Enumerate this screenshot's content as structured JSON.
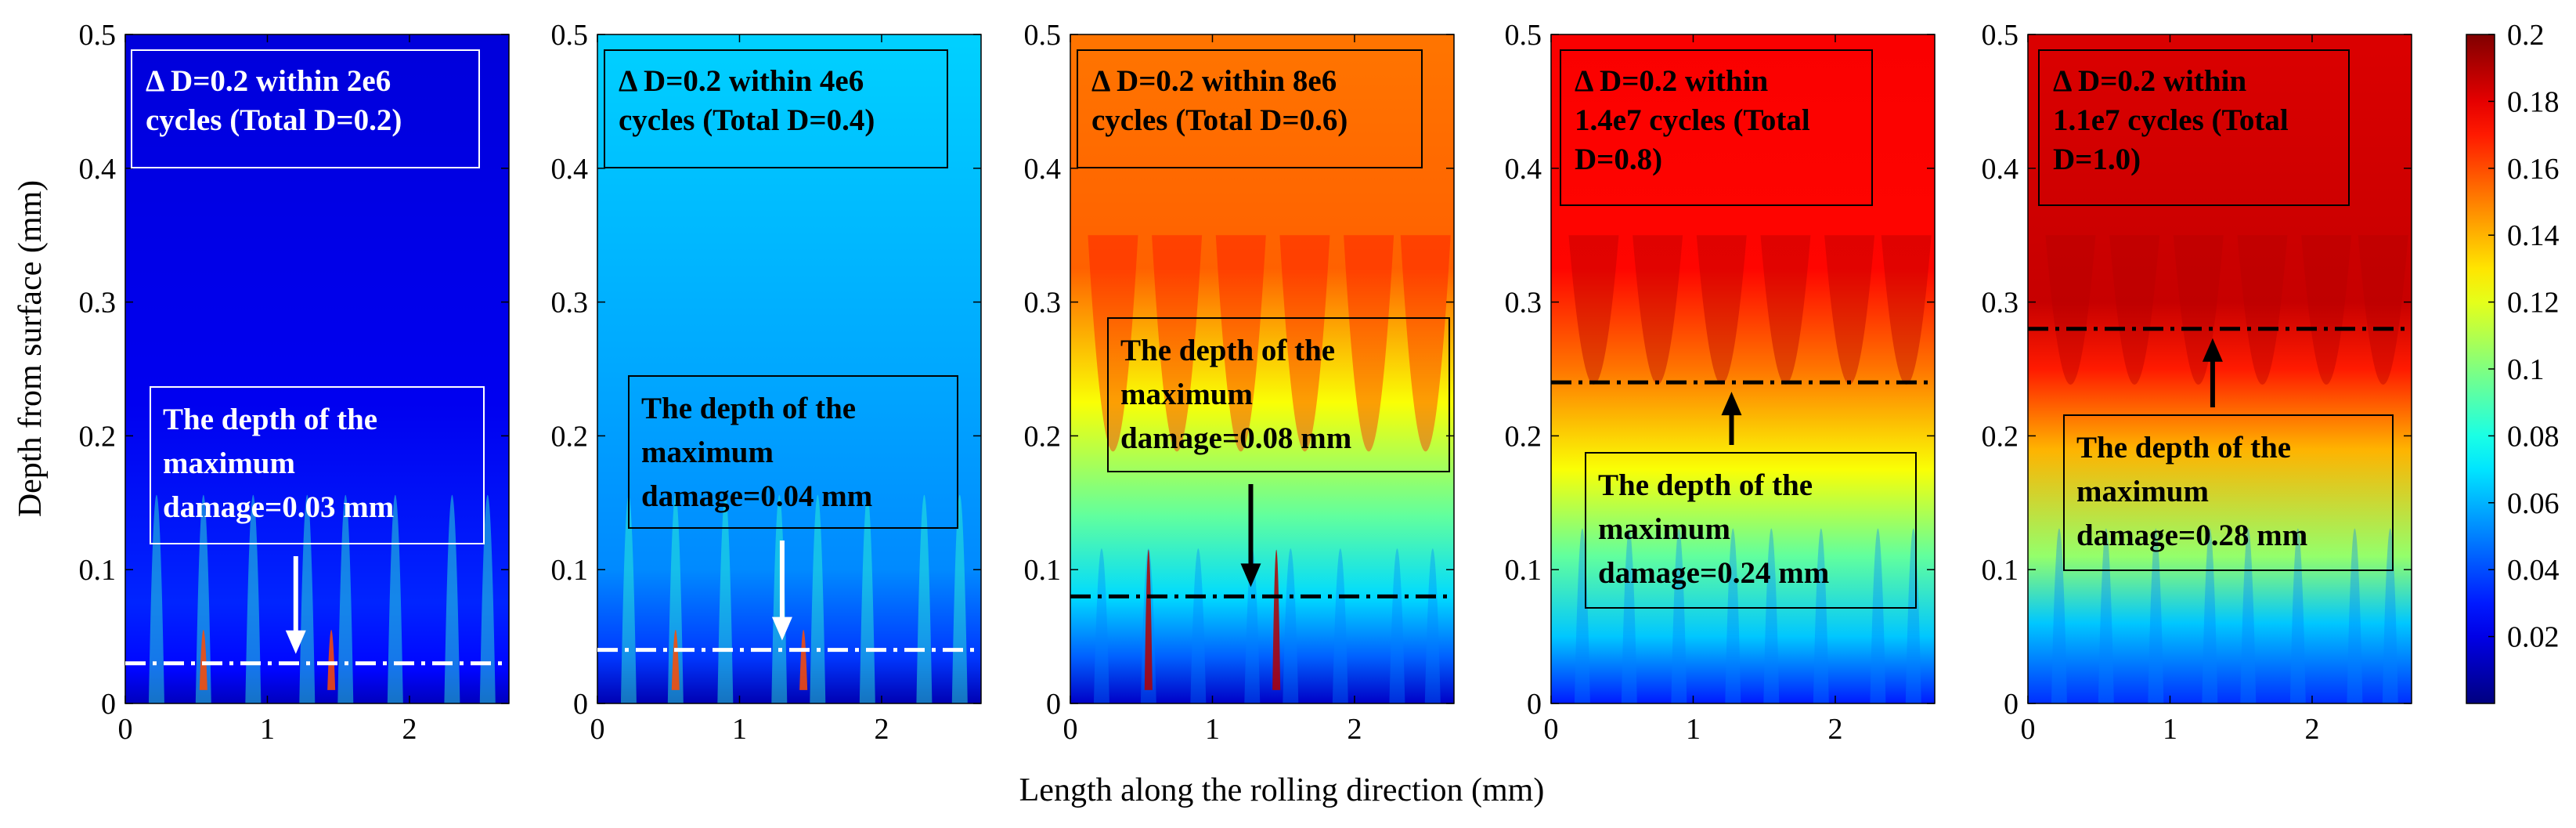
{
  "figure": {
    "ylabel": "Depth from surface (mm)",
    "xlabel": "Length along the rolling direction (mm)"
  },
  "colors": {
    "axis": "#000000",
    "white_label": "#ffffff",
    "colormap_jet": [
      "#00008f",
      "#0000ff",
      "#0080ff",
      "#00ffff",
      "#80ff80",
      "#ffff00",
      "#ff8000",
      "#ff0000",
      "#800000"
    ]
  },
  "chart_data": {
    "type": "heatmap",
    "x_range": [
      0,
      2.7
    ],
    "y_range": [
      0,
      0.5
    ],
    "x_ticks": [
      0,
      1,
      2
    ],
    "y_ticks": [
      0,
      0.1,
      0.2,
      0.3,
      0.4,
      0.5
    ],
    "panels": [
      {
        "title_lines": [
          "Δ D=0.2 within 2e6",
          "cycles (Total D=0.2)"
        ],
        "cycles": 2000000,
        "delta_D": 0.2,
        "total_D": 0.2,
        "max_damage_depth_mm": 0.03,
        "annotation_lines": [
          "The depth of the",
          "maximum",
          "damage=0.03 mm"
        ],
        "text_color": "white",
        "line_color": "white",
        "arrow_dir": "down",
        "arrow_x": 1.2
      },
      {
        "title_lines": [
          "Δ D=0.2 within 4e6",
          "cycles (Total D=0.4)"
        ],
        "cycles": 4000000,
        "delta_D": 0.2,
        "total_D": 0.4,
        "max_damage_depth_mm": 0.04,
        "annotation_lines": [
          "The depth of the",
          "maximum",
          "damage=0.04 mm"
        ],
        "text_color": "black",
        "line_color": "white",
        "arrow_dir": "down",
        "arrow_x": 1.3
      },
      {
        "title_lines": [
          "Δ D=0.2 within 8e6",
          "cycles (Total D=0.6)"
        ],
        "cycles": 8000000,
        "delta_D": 0.2,
        "total_D": 0.6,
        "max_damage_depth_mm": 0.08,
        "annotation_lines": [
          "The depth of the",
          "maximum",
          "damage=0.08 mm"
        ],
        "text_color": "black",
        "line_color": "black",
        "arrow_dir": "down",
        "arrow_x": 1.27
      },
      {
        "title_lines": [
          "Δ D=0.2 within",
          "1.4e7 cycles (Total",
          "D=0.8)"
        ],
        "cycles": 14000000,
        "delta_D": 0.2,
        "total_D": 0.8,
        "max_damage_depth_mm": 0.24,
        "annotation_lines": [
          "The depth of the",
          "maximum",
          "damage=0.24 mm"
        ],
        "text_color": "black",
        "line_color": "black",
        "arrow_dir": "up",
        "arrow_x": 1.27
      },
      {
        "title_lines": [
          "Δ D=0.2 within",
          "1.1e7 cycles (Total",
          "D=1.0)"
        ],
        "cycles": 11000000,
        "delta_D": 0.2,
        "total_D": 1.0,
        "max_damage_depth_mm": 0.28,
        "annotation_lines": [
          "The depth of the",
          "maximum",
          "damage=0.28 mm"
        ],
        "text_color": "black",
        "line_color": "black",
        "arrow_dir": "up",
        "arrow_x": 1.3
      }
    ],
    "colorbar": {
      "range": [
        0,
        0.2
      ],
      "ticks": [
        0.02,
        0.04,
        0.06,
        0.08,
        0.1,
        0.12,
        0.14,
        0.16,
        0.18,
        0.2
      ]
    }
  }
}
